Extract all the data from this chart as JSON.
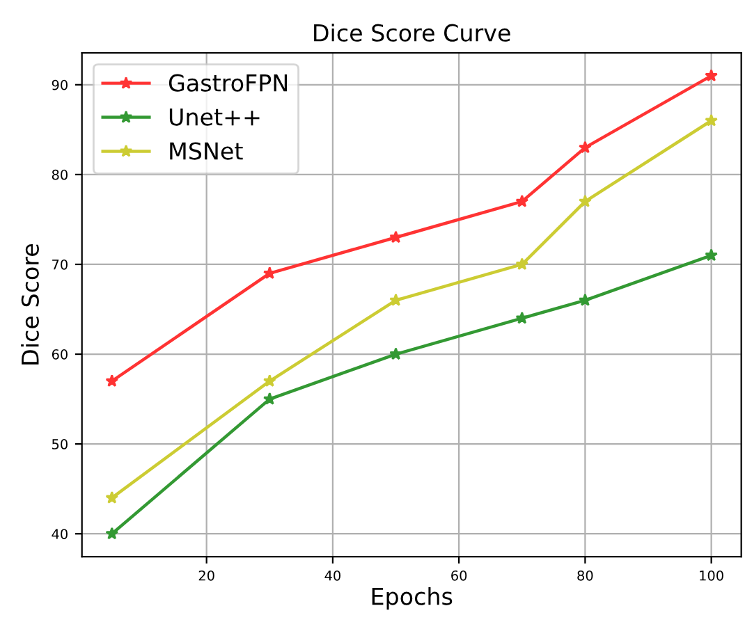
{
  "chart_data": {
    "type": "line",
    "title": "Dice Score Curve",
    "xlabel": "Epochs",
    "ylabel": "Dice Score",
    "x": [
      5,
      30,
      50,
      70,
      80,
      100
    ],
    "series": [
      {
        "name": "GastroFPN",
        "color": "#ff3333",
        "values": [
          57,
          69,
          73,
          77,
          83,
          91
        ]
      },
      {
        "name": "Unet++",
        "color": "#339933",
        "values": [
          40,
          55,
          60,
          64,
          66,
          71
        ]
      },
      {
        "name": "MSNet",
        "color": "#cccc33",
        "values": [
          44,
          57,
          66,
          70,
          77,
          86
        ]
      }
    ],
    "xlim": [
      0.25,
      104.75
    ],
    "ylim": [
      37.45,
      93.55
    ],
    "xticks": [
      20,
      40,
      60,
      80,
      100
    ],
    "yticks": [
      40,
      50,
      60,
      70,
      80,
      90
    ],
    "grid": true,
    "legend": "top left",
    "marker": "star",
    "line_style": "solid"
  }
}
